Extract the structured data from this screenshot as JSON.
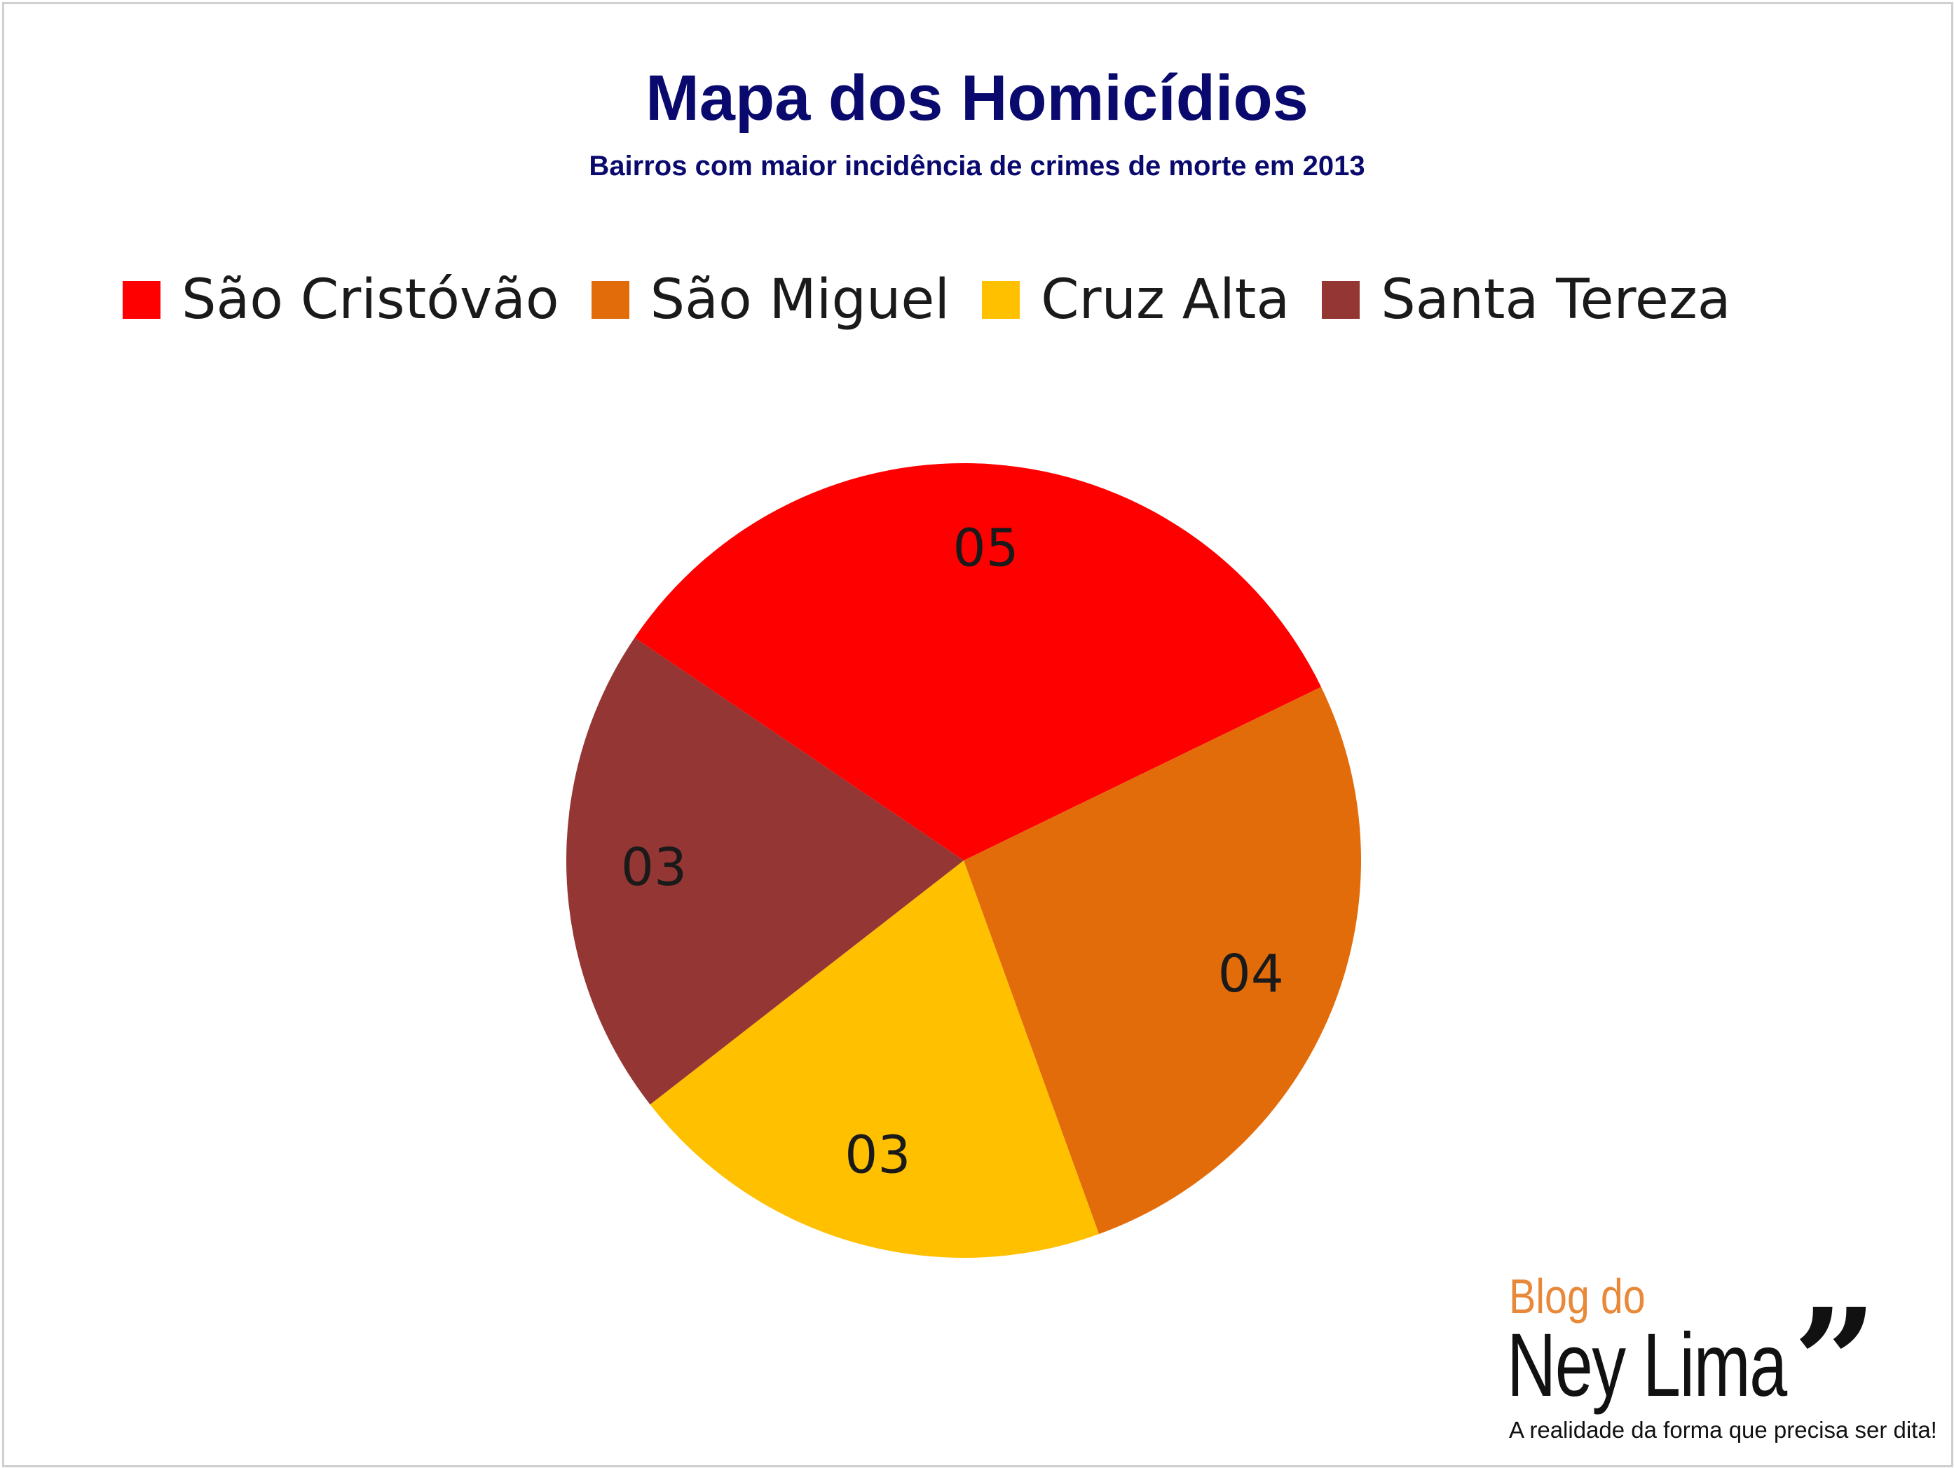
{
  "chart_data": {
    "type": "pie",
    "title": "Mapa dos Homicídios",
    "subtitle": "Bairros com maior incidência de crimes de morte em 2013",
    "legend_position": "top",
    "series": [
      {
        "name": "São Cristóvão",
        "value": 5,
        "label": "05",
        "color": "#ff0000"
      },
      {
        "name": "São Miguel",
        "value": 4,
        "label": "04",
        "color": "#e36c0a"
      },
      {
        "name": "Cruz Alta",
        "value": 3,
        "label": "03",
        "color": "#ffc000"
      },
      {
        "name": "Santa Tereza",
        "value": 3,
        "label": "03",
        "color": "#943634"
      }
    ]
  },
  "branding": {
    "line1": "Blog do",
    "line2": "Ney Lima",
    "quote_mark": "”",
    "tagline": "A realidade da forma que precisa ser dita!"
  }
}
